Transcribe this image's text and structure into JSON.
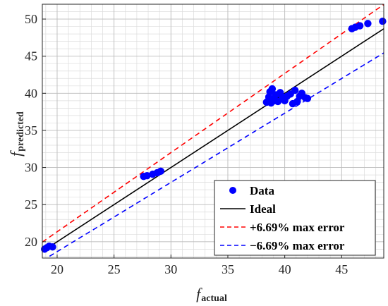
{
  "chart_data": {
    "type": "scatter",
    "title": "",
    "xlabel": {
      "main": "f",
      "sub": "actual"
    },
    "ylabel": {
      "main": "f",
      "sub": "predicted"
    },
    "xlim": [
      18.7,
      48.7
    ],
    "ylim": [
      17.8,
      52.0
    ],
    "xticks": [
      20,
      25,
      30,
      35,
      40,
      45
    ],
    "yticks": [
      20,
      25,
      30,
      35,
      40,
      45,
      50
    ],
    "minor_grid_step": 1,
    "grid": true,
    "legend_position": "bottom-right",
    "error_pct": 6.69,
    "series": [
      {
        "name": "Data",
        "kind": "scatter",
        "color": "#0000ff",
        "points": [
          [
            18.9,
            19.0
          ],
          [
            19.1,
            19.2
          ],
          [
            19.3,
            19.4
          ],
          [
            19.6,
            19.3
          ],
          [
            27.6,
            28.8
          ],
          [
            27.9,
            28.9
          ],
          [
            28.4,
            29.1
          ],
          [
            28.8,
            29.3
          ],
          [
            29.1,
            29.5
          ],
          [
            38.4,
            38.8
          ],
          [
            38.6,
            39.5
          ],
          [
            38.7,
            40.2
          ],
          [
            38.8,
            38.7
          ],
          [
            38.9,
            40.6
          ],
          [
            39.0,
            39.2
          ],
          [
            39.2,
            39.8
          ],
          [
            39.4,
            38.9
          ],
          [
            39.6,
            40.1
          ],
          [
            39.8,
            39.5
          ],
          [
            40.0,
            39.0
          ],
          [
            40.2,
            39.6
          ],
          [
            40.5,
            39.9
          ],
          [
            40.7,
            38.6
          ],
          [
            40.9,
            40.4
          ],
          [
            41.1,
            38.9
          ],
          [
            41.3,
            39.6
          ],
          [
            41.5,
            40.0
          ],
          [
            41.8,
            39.4
          ],
          [
            42.0,
            39.3
          ],
          [
            39.1,
            39.0
          ],
          [
            38.6,
            39.1
          ],
          [
            45.9,
            48.7
          ],
          [
            46.2,
            48.9
          ],
          [
            46.6,
            49.1
          ],
          [
            47.3,
            49.4
          ],
          [
            48.6,
            49.7
          ]
        ]
      },
      {
        "name": "Ideal",
        "kind": "line",
        "color": "#000000",
        "dash": "solid",
        "factor": 1.0
      },
      {
        "name": "+6.69% max error",
        "kind": "line",
        "color": "#ff0000",
        "dash": "dashed",
        "factor": 1.0669
      },
      {
        "name": "−6.69% max error",
        "kind": "line",
        "color": "#0000ff",
        "dash": "dashed",
        "factor": 0.9331
      }
    ]
  }
}
